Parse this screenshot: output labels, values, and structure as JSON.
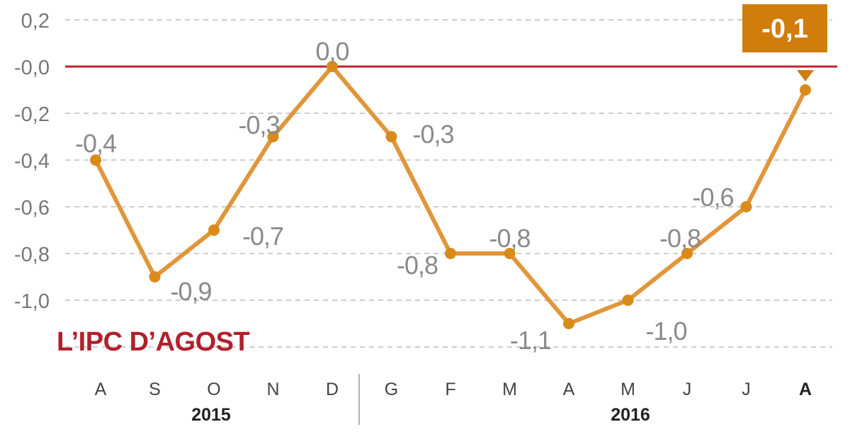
{
  "chart_data": {
    "type": "line",
    "title": "L’IPC D’AGOST",
    "categories": [
      "A",
      "S",
      "O",
      "N",
      "D",
      "G",
      "F",
      "M",
      "A",
      "M",
      "J",
      "J",
      "A"
    ],
    "series": [
      {
        "values": [
          -0.4,
          -0.9,
          -0.7,
          -0.3,
          0.0,
          -0.3,
          -0.8,
          -0.8,
          -1.1,
          -1.0,
          -0.8,
          -0.6,
          -0.1
        ]
      }
    ],
    "data_labels": [
      "-0,4",
      "-0,9",
      "-0,7",
      "-0,3",
      "0,0",
      "-0,3",
      "-0,8",
      "-0,8",
      "-1,1",
      "-1,0",
      "-0,8",
      "-0,6",
      "-0,1"
    ],
    "y_ticks": [
      0.2,
      0.0,
      -0.2,
      -0.4,
      -0.6,
      -0.8,
      -1.0
    ],
    "y_tick_labels": [
      "0,2",
      "-0,0",
      "-0,2",
      "-0,4",
      "-0,6",
      "-0,8",
      "-1,0"
    ],
    "ylim": [
      -1.2,
      0.2
    ],
    "year_groups": [
      {
        "label": "2015",
        "from": 0,
        "to": 4
      },
      {
        "label": "2016",
        "from": 5,
        "to": 12
      }
    ],
    "reference_line": 0.0,
    "highlight_index": 12,
    "grid": true,
    "colors": {
      "line": "#e0963a",
      "marker": "#d98b1a",
      "reference": "#c0202e",
      "highlight_box": "#d07d0b",
      "title": "#b0202c",
      "grid": "#cccccc",
      "tick_text": "#777777",
      "label_text": "#8a8a8a"
    }
  }
}
